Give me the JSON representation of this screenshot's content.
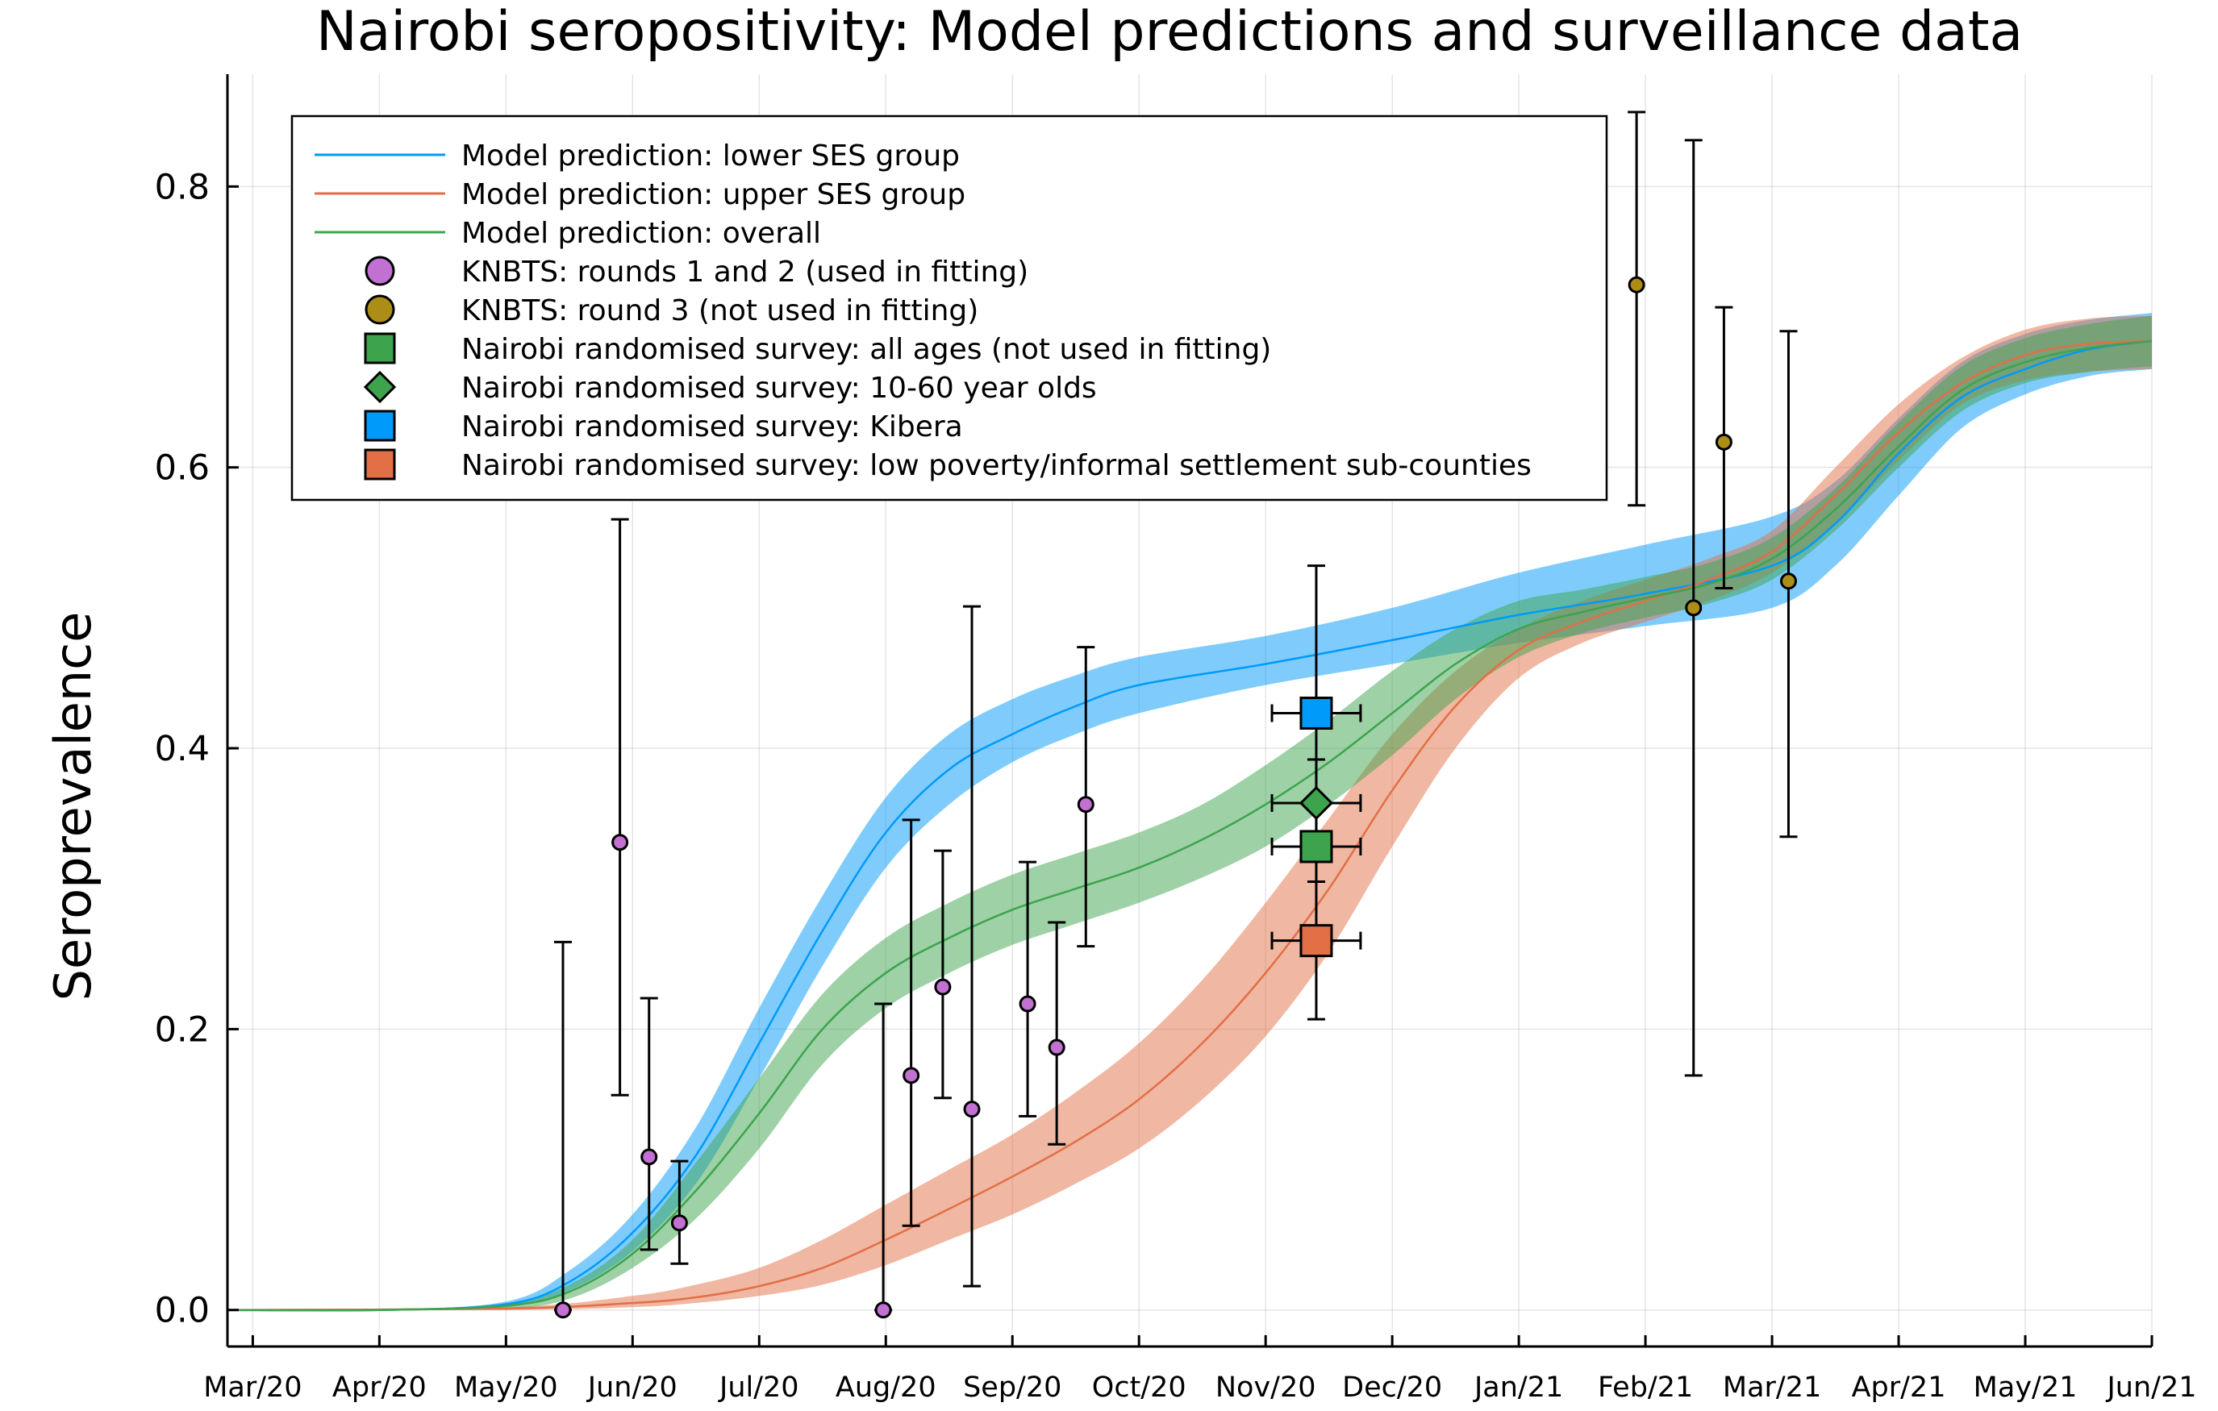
{
  "chart_data": {
    "type": "line",
    "title": "Nairobi seropositivity: Model predictions and surveillance data",
    "xlabel": "",
    "ylabel": "Seroprevalence",
    "ylim": [
      -0.026,
      0.88
    ],
    "xlim_months": [
      -0.2,
      15.0
    ],
    "grid": true,
    "legend_position": "top-left",
    "x_ticks": [
      {
        "label": "Mar/20",
        "m": 0
      },
      {
        "label": "Apr/20",
        "m": 1
      },
      {
        "label": "May/20",
        "m": 2
      },
      {
        "label": "Jun/20",
        "m": 3
      },
      {
        "label": "Jul/20",
        "m": 4
      },
      {
        "label": "Aug/20",
        "m": 5
      },
      {
        "label": "Sep/20",
        "m": 6
      },
      {
        "label": "Oct/20",
        "m": 7
      },
      {
        "label": "Nov/20",
        "m": 8
      },
      {
        "label": "Dec/20",
        "m": 9
      },
      {
        "label": "Jan/21",
        "m": 10
      },
      {
        "label": "Feb/21",
        "m": 11
      },
      {
        "label": "Mar/21",
        "m": 12
      },
      {
        "label": "Apr/21",
        "m": 13
      },
      {
        "label": "May/21",
        "m": 14
      },
      {
        "label": "Jun/21",
        "m": 15
      }
    ],
    "y_ticks": [
      {
        "label": "0.0",
        "v": 0.0
      },
      {
        "label": "0.2",
        "v": 0.2
      },
      {
        "label": "0.4",
        "v": 0.4
      },
      {
        "label": "0.6",
        "v": 0.6
      },
      {
        "label": "0.8",
        "v": 0.8
      }
    ],
    "x_axis_note": "x values are in months after 1 Mar 2020 (Mar/20 = 0)",
    "series": [
      {
        "name": "Model prediction: lower SES group",
        "color": "#009AFA",
        "band_color": "#009AFA",
        "x": [
          -0.2,
          1.0,
          2.0,
          2.5,
          3.0,
          3.5,
          4.0,
          4.5,
          5.0,
          5.5,
          6.0,
          6.5,
          7.0,
          8.0,
          9.0,
          10.0,
          11.0,
          12.0,
          12.5,
          13.0,
          13.5,
          14.0,
          14.5,
          15.0
        ],
        "mid": [
          0.0,
          0.0,
          0.004,
          0.02,
          0.055,
          0.11,
          0.19,
          0.27,
          0.34,
          0.385,
          0.41,
          0.43,
          0.445,
          0.46,
          0.477,
          0.495,
          0.51,
          0.53,
          0.56,
          0.61,
          0.65,
          0.67,
          0.684,
          0.69
        ],
        "lo": [
          0.0,
          0.0,
          0.002,
          0.014,
          0.042,
          0.09,
          0.165,
          0.245,
          0.315,
          0.36,
          0.39,
          0.41,
          0.425,
          0.445,
          0.46,
          0.475,
          0.487,
          0.5,
          0.53,
          0.58,
          0.628,
          0.652,
          0.665,
          0.67
        ],
        "hi": [
          0.0,
          0.0,
          0.006,
          0.028,
          0.068,
          0.13,
          0.215,
          0.295,
          0.365,
          0.41,
          0.435,
          0.452,
          0.465,
          0.48,
          0.5,
          0.525,
          0.545,
          0.565,
          0.59,
          0.635,
          0.675,
          0.695,
          0.705,
          0.71
        ]
      },
      {
        "name": "Model prediction: upper SES group",
        "color": "#E26F46",
        "band_color": "#E26F46",
        "x": [
          -0.2,
          2.0,
          3.0,
          3.5,
          4.0,
          4.5,
          5.0,
          5.5,
          6.0,
          6.5,
          7.0,
          7.5,
          8.0,
          8.5,
          9.0,
          9.5,
          10.0,
          10.5,
          11.0,
          11.5,
          12.0,
          12.5,
          13.0,
          13.5,
          14.0,
          14.5,
          15.0
        ],
        "mid": [
          0.0,
          0.001,
          0.005,
          0.009,
          0.017,
          0.03,
          0.05,
          0.072,
          0.095,
          0.12,
          0.15,
          0.19,
          0.24,
          0.3,
          0.37,
          0.43,
          0.47,
          0.49,
          0.505,
          0.52,
          0.54,
          0.58,
          0.625,
          0.66,
          0.68,
          0.688,
          0.69
        ],
        "lo": [
          0.0,
          0.0,
          0.002,
          0.005,
          0.01,
          0.018,
          0.032,
          0.05,
          0.068,
          0.09,
          0.115,
          0.15,
          0.195,
          0.255,
          0.33,
          0.4,
          0.45,
          0.475,
          0.49,
          0.505,
          0.525,
          0.56,
          0.605,
          0.645,
          0.662,
          0.668,
          0.67
        ],
        "hi": [
          0.0,
          0.002,
          0.01,
          0.018,
          0.03,
          0.05,
          0.075,
          0.1,
          0.125,
          0.155,
          0.19,
          0.235,
          0.29,
          0.35,
          0.41,
          0.455,
          0.485,
          0.505,
          0.52,
          0.535,
          0.555,
          0.6,
          0.645,
          0.678,
          0.698,
          0.706,
          0.708
        ]
      },
      {
        "name": "Model prediction: overall",
        "color": "#3DA44D",
        "band_color": "#3DA44D",
        "x": [
          -0.2,
          1.0,
          2.0,
          2.5,
          3.0,
          3.5,
          4.0,
          4.5,
          5.0,
          5.5,
          6.0,
          6.5,
          7.0,
          7.5,
          8.0,
          8.5,
          9.0,
          9.5,
          10.0,
          10.5,
          11.0,
          11.5,
          12.0,
          12.5,
          13.0,
          13.5,
          14.0,
          14.5,
          15.0
        ],
        "mid": [
          0.0,
          0.0,
          0.003,
          0.013,
          0.04,
          0.085,
          0.14,
          0.2,
          0.24,
          0.265,
          0.285,
          0.3,
          0.315,
          0.335,
          0.36,
          0.39,
          0.425,
          0.46,
          0.485,
          0.497,
          0.507,
          0.517,
          0.535,
          0.57,
          0.615,
          0.655,
          0.675,
          0.685,
          0.69
        ],
        "lo": [
          0.0,
          0.0,
          0.001,
          0.008,
          0.03,
          0.065,
          0.115,
          0.175,
          0.215,
          0.24,
          0.26,
          0.275,
          0.29,
          0.308,
          0.33,
          0.36,
          0.395,
          0.435,
          0.465,
          0.482,
          0.493,
          0.503,
          0.52,
          0.555,
          0.6,
          0.64,
          0.66,
          0.668,
          0.672
        ],
        "hi": [
          0.0,
          0.0,
          0.005,
          0.018,
          0.05,
          0.105,
          0.165,
          0.225,
          0.265,
          0.29,
          0.31,
          0.325,
          0.34,
          0.36,
          0.388,
          0.42,
          0.455,
          0.485,
          0.505,
          0.513,
          0.522,
          0.532,
          0.55,
          0.585,
          0.632,
          0.672,
          0.692,
          0.702,
          0.708
        ]
      }
    ],
    "points": [
      {
        "name": "KNBTS: rounds 1 and 2 (used in fitting)",
        "marker": "circle",
        "color": "#C271D2",
        "data": [
          {
            "x": 2.45,
            "y": 0.0,
            "lo": 0.0,
            "hi": 0.262
          },
          {
            "x": 2.9,
            "y": 0.333,
            "lo": 0.153,
            "hi": 0.563
          },
          {
            "x": 3.13,
            "y": 0.109,
            "lo": 0.043,
            "hi": 0.222
          },
          {
            "x": 3.37,
            "y": 0.062,
            "lo": 0.033,
            "hi": 0.106
          },
          {
            "x": 4.98,
            "y": 0.0,
            "lo": 0.0,
            "hi": 0.218
          },
          {
            "x": 5.2,
            "y": 0.167,
            "lo": 0.06,
            "hi": 0.349
          },
          {
            "x": 5.45,
            "y": 0.23,
            "lo": 0.151,
            "hi": 0.327
          },
          {
            "x": 5.68,
            "y": 0.143,
            "lo": 0.017,
            "hi": 0.501
          },
          {
            "x": 6.12,
            "y": 0.218,
            "lo": 0.138,
            "hi": 0.319
          },
          {
            "x": 6.35,
            "y": 0.187,
            "lo": 0.118,
            "hi": 0.276
          },
          {
            "x": 6.58,
            "y": 0.36,
            "lo": 0.259,
            "hi": 0.472
          }
        ]
      },
      {
        "name": "KNBTS: round 3 (not used in fitting)",
        "marker": "circle",
        "color": "#AC8D18",
        "data": [
          {
            "x": 10.93,
            "y": 0.73,
            "lo": 0.573,
            "hi": 0.853
          },
          {
            "x": 11.38,
            "y": 0.5,
            "lo": 0.167,
            "hi": 0.833
          },
          {
            "x": 11.62,
            "y": 0.618,
            "lo": 0.514,
            "hi": 0.714
          },
          {
            "x": 12.13,
            "y": 0.519,
            "lo": 0.337,
            "hi": 0.697
          }
        ]
      },
      {
        "name": "Nairobi randomised survey: all ages (not used in fitting)",
        "marker": "square",
        "color": "#3DA44D",
        "data": [
          {
            "x": 8.4,
            "y": 0.33,
            "lo": 0.305,
            "hi": 0.357,
            "xlo": 8.05,
            "xhi": 8.75
          }
        ]
      },
      {
        "name": "Nairobi randomised survey: 10-60 year olds",
        "marker": "diamond",
        "color": "#3DA44D",
        "data": [
          {
            "x": 8.4,
            "y": 0.361,
            "lo": 0.332,
            "hi": 0.392,
            "xlo": 8.05,
            "xhi": 8.75
          }
        ]
      },
      {
        "name": "Nairobi randomised survey: Kibera",
        "marker": "square",
        "color": "#009AFA",
        "data": [
          {
            "x": 8.4,
            "y": 0.425,
            "lo": 0.33,
            "hi": 0.53,
            "xlo": 8.05,
            "xhi": 8.75
          }
        ]
      },
      {
        "name": "Nairobi randomised survey: low poverty/informal settlement sub-counties",
        "marker": "square",
        "color": "#E26F46",
        "data": [
          {
            "x": 8.4,
            "y": 0.263,
            "lo": 0.207,
            "hi": 0.327,
            "xlo": 8.05,
            "xhi": 8.75
          }
        ]
      }
    ],
    "legend": [
      {
        "label": "Model prediction: lower SES group",
        "kind": "line",
        "color": "#009AFA"
      },
      {
        "label": "Model prediction: upper SES group",
        "kind": "line",
        "color": "#E26F46"
      },
      {
        "label": "Model prediction: overall",
        "kind": "line",
        "color": "#3DA44D"
      },
      {
        "label": "KNBTS: rounds 1 and 2 (used in fitting)",
        "kind": "circle",
        "color": "#C271D2"
      },
      {
        "label": "KNBTS: round 3 (not used in fitting)",
        "kind": "circle",
        "color": "#AC8D18"
      },
      {
        "label": "Nairobi randomised survey: all ages (not used in fitting)",
        "kind": "square",
        "color": "#3DA44D"
      },
      {
        "label": "Nairobi randomised survey: 10-60 year olds",
        "kind": "diamond",
        "color": "#3DA44D"
      },
      {
        "label": "Nairobi randomised survey: Kibera",
        "kind": "square",
        "color": "#009AFA"
      },
      {
        "label": "Nairobi randomised survey: low poverty/informal settlement sub-counties",
        "kind": "square",
        "color": "#E26F46"
      }
    ]
  }
}
